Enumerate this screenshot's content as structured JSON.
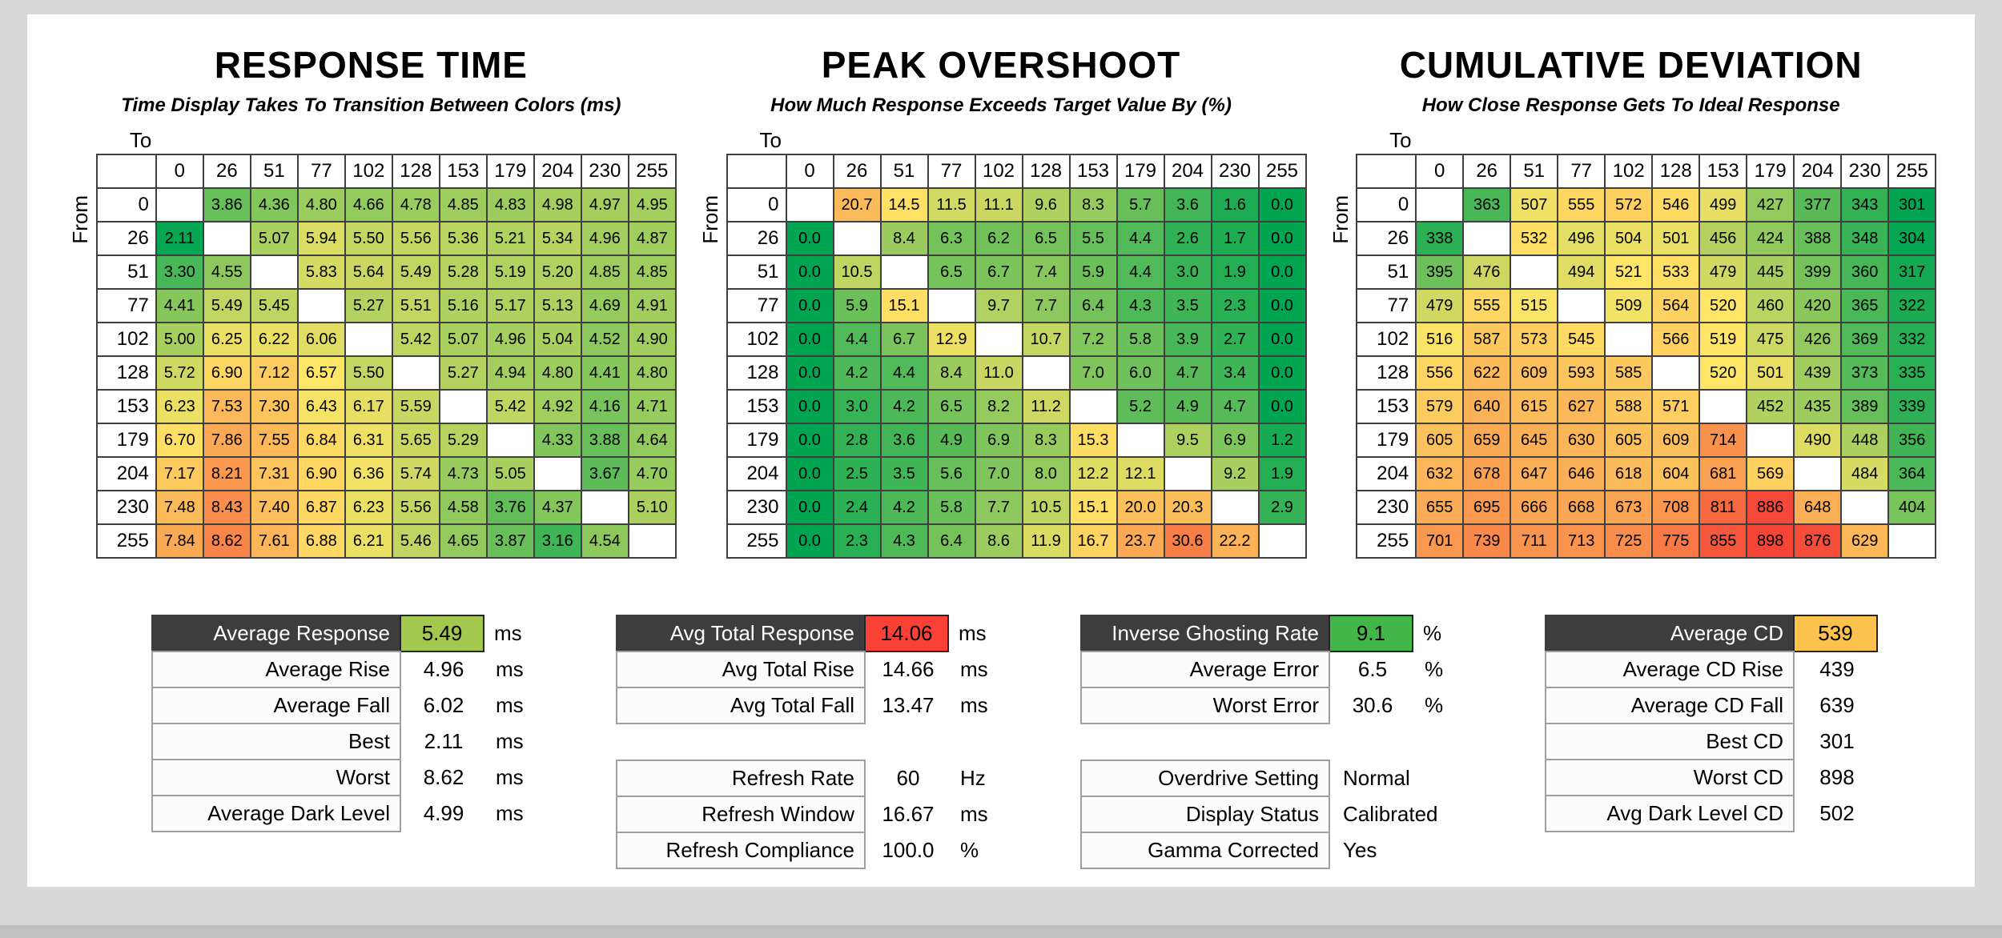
{
  "window": {
    "background": "#d8d8d8",
    "surface": "#ffffff",
    "bottom_bar": "#c0c0c0",
    "dark_header": "#3d3d3d"
  },
  "chart_data": [
    {
      "type": "heatmap",
      "name": "response-time",
      "title": "RESPONSE TIME",
      "subtitle": "Time Display Takes To Transition Between Colors (ms)",
      "xlabel": "To",
      "ylabel": "From",
      "levels": [
        0,
        26,
        51,
        77,
        102,
        128,
        153,
        179,
        204,
        230,
        255
      ],
      "decimals": 2,
      "color_scale": {
        "min": 2.0,
        "mid": 6.6,
        "max": 10.0,
        "low": "#00a551",
        "mid_color": "#ffe566",
        "high": "#f44336"
      },
      "rows": [
        [
          null,
          3.86,
          4.36,
          4.8,
          4.66,
          4.78,
          4.85,
          4.83,
          4.98,
          4.97,
          4.95
        ],
        [
          2.11,
          null,
          5.07,
          5.94,
          5.5,
          5.56,
          5.36,
          5.21,
          5.34,
          4.96,
          4.87
        ],
        [
          3.3,
          4.55,
          null,
          5.83,
          5.64,
          5.49,
          5.28,
          5.19,
          5.2,
          4.85,
          4.85
        ],
        [
          4.41,
          5.49,
          5.45,
          null,
          5.27,
          5.51,
          5.16,
          5.17,
          5.13,
          4.69,
          4.91
        ],
        [
          5.0,
          6.25,
          6.22,
          6.06,
          null,
          5.42,
          5.07,
          4.96,
          5.04,
          4.52,
          4.9
        ],
        [
          5.72,
          6.9,
          7.12,
          6.57,
          5.5,
          null,
          5.27,
          4.94,
          4.8,
          4.41,
          4.8
        ],
        [
          6.23,
          7.53,
          7.3,
          6.43,
          6.17,
          5.59,
          null,
          5.42,
          4.92,
          4.16,
          4.71
        ],
        [
          6.7,
          7.86,
          7.55,
          6.84,
          6.31,
          5.65,
          5.29,
          null,
          4.33,
          3.88,
          4.64
        ],
        [
          7.17,
          8.21,
          7.31,
          6.9,
          6.36,
          5.74,
          4.73,
          5.05,
          null,
          3.67,
          4.7
        ],
        [
          7.48,
          8.43,
          7.4,
          6.87,
          6.23,
          5.56,
          4.58,
          3.76,
          4.37,
          null,
          5.1
        ],
        [
          7.84,
          8.62,
          7.61,
          6.88,
          6.21,
          5.46,
          4.65,
          3.87,
          3.16,
          4.54,
          null
        ]
      ]
    },
    {
      "type": "heatmap",
      "name": "peak-overshoot",
      "title": "PEAK OVERSHOOT",
      "subtitle": "How Much Response Exceeds Target Value By (%)",
      "xlabel": "To",
      "ylabel": "From",
      "levels": [
        0,
        26,
        51,
        77,
        102,
        128,
        153,
        179,
        204,
        230,
        255
      ],
      "decimals": 1,
      "color_scale": {
        "min": 0,
        "mid": 14,
        "max": 40,
        "low": "#00a551",
        "mid_color": "#ffe566",
        "high": "#f44336"
      },
      "rows": [
        [
          null,
          20.7,
          14.5,
          11.5,
          11.1,
          9.6,
          8.3,
          5.7,
          3.6,
          1.6,
          0.0
        ],
        [
          0.0,
          null,
          8.4,
          6.3,
          6.2,
          6.5,
          5.5,
          4.4,
          2.6,
          1.7,
          0.0
        ],
        [
          0.0,
          10.5,
          null,
          6.5,
          6.7,
          7.4,
          5.9,
          4.4,
          3.0,
          1.9,
          0.0
        ],
        [
          0.0,
          5.9,
          15.1,
          null,
          9.7,
          7.7,
          6.4,
          4.3,
          3.5,
          2.3,
          0.0
        ],
        [
          0.0,
          4.4,
          6.7,
          12.9,
          null,
          10.7,
          7.2,
          5.8,
          3.9,
          2.7,
          0.0
        ],
        [
          0.0,
          4.2,
          4.4,
          8.4,
          11.0,
          null,
          7.0,
          6.0,
          4.7,
          3.4,
          0.0
        ],
        [
          0.0,
          3.0,
          4.2,
          6.5,
          8.2,
          11.2,
          null,
          5.2,
          4.9,
          4.7,
          0.0
        ],
        [
          0.0,
          2.8,
          3.6,
          4.9,
          6.9,
          8.3,
          15.3,
          null,
          9.5,
          6.9,
          1.2
        ],
        [
          0.0,
          2.5,
          3.5,
          5.6,
          7.0,
          8.0,
          12.2,
          12.1,
          null,
          9.2,
          1.9
        ],
        [
          0.0,
          2.4,
          4.2,
          5.8,
          7.7,
          10.5,
          15.1,
          20.0,
          20.3,
          null,
          2.9
        ],
        [
          0.0,
          2.3,
          4.3,
          6.4,
          8.6,
          11.9,
          16.7,
          23.7,
          30.6,
          22.2,
          null
        ]
      ]
    },
    {
      "type": "heatmap",
      "name": "cumulative-deviation",
      "title": "CUMULATIVE DEVIATION",
      "subtitle": "How Close Response Gets To Ideal Response",
      "xlabel": "To",
      "ylabel": "From",
      "levels": [
        0,
        26,
        51,
        77,
        102,
        128,
        153,
        179,
        204,
        230,
        255
      ],
      "decimals": 0,
      "color_scale": {
        "min": 300,
        "mid": 520,
        "max": 900,
        "low": "#00a551",
        "mid_color": "#ffe566",
        "high": "#f44336"
      },
      "rows": [
        [
          null,
          363,
          507,
          555,
          572,
          546,
          499,
          427,
          377,
          343,
          301
        ],
        [
          338,
          null,
          532,
          496,
          504,
          501,
          456,
          424,
          388,
          348,
          304
        ],
        [
          395,
          476,
          null,
          494,
          521,
          533,
          479,
          445,
          399,
          360,
          317
        ],
        [
          479,
          555,
          515,
          null,
          509,
          564,
          520,
          460,
          420,
          365,
          322
        ],
        [
          516,
          587,
          573,
          545,
          null,
          566,
          519,
          475,
          426,
          369,
          332
        ],
        [
          556,
          622,
          609,
          593,
          585,
          null,
          520,
          501,
          439,
          373,
          335
        ],
        [
          579,
          640,
          615,
          627,
          588,
          571,
          null,
          452,
          435,
          389,
          339
        ],
        [
          605,
          659,
          645,
          630,
          605,
          609,
          714,
          null,
          490,
          448,
          356
        ],
        [
          632,
          678,
          647,
          646,
          618,
          604,
          681,
          569,
          null,
          484,
          364
        ],
        [
          655,
          695,
          666,
          668,
          673,
          708,
          811,
          886,
          648,
          null,
          404
        ],
        [
          701,
          739,
          711,
          713,
          725,
          775,
          855,
          898,
          876,
          629,
          null
        ]
      ]
    }
  ],
  "summaries": [
    {
      "name": "response-summary",
      "rows": [
        {
          "type": "header",
          "label": "Average Response",
          "value": "5.49",
          "unit": "ms",
          "value_bg": "#a3c84f"
        },
        {
          "type": "row",
          "label": "Average Rise",
          "value": "4.96",
          "unit": "ms"
        },
        {
          "type": "row",
          "label": "Average Fall",
          "value": "6.02",
          "unit": "ms"
        },
        {
          "type": "row",
          "label": "Best",
          "value": "2.11",
          "unit": "ms"
        },
        {
          "type": "row",
          "label": "Worst",
          "value": "8.62",
          "unit": "ms"
        },
        {
          "type": "row",
          "label": "Average Dark Level",
          "value": "4.99",
          "unit": "ms"
        }
      ]
    },
    {
      "name": "total-response-summary",
      "rows": [
        {
          "type": "header",
          "label": "Avg Total Response",
          "value": "14.06",
          "unit": "ms",
          "value_bg": "#fb4136"
        },
        {
          "type": "row",
          "label": "Avg Total Rise",
          "value": "14.66",
          "unit": "ms"
        },
        {
          "type": "row",
          "label": "Avg Total Fall",
          "value": "13.47",
          "unit": "ms"
        },
        {
          "type": "spacer"
        },
        {
          "type": "row",
          "label": "Refresh Rate",
          "value": "60",
          "unit": "Hz"
        },
        {
          "type": "row",
          "label": "Refresh Window",
          "value": "16.67",
          "unit": "ms"
        },
        {
          "type": "row",
          "label": "Refresh Compliance",
          "value": "100.0",
          "unit": "%"
        }
      ]
    },
    {
      "name": "overshoot-summary",
      "rows": [
        {
          "type": "header",
          "label": "Inverse Ghosting Rate",
          "value": "9.1",
          "unit": "%",
          "value_bg": "#43b649"
        },
        {
          "type": "row",
          "label": "Average Error",
          "value": "6.5",
          "unit": "%"
        },
        {
          "type": "row",
          "label": "Worst Error",
          "value": "30.6",
          "unit": "%"
        },
        {
          "type": "spacer"
        },
        {
          "type": "row",
          "label": "Overdrive Setting",
          "value": "Normal",
          "text": true
        },
        {
          "type": "row",
          "label": "Display Status",
          "value": "Calibrated",
          "text": true
        },
        {
          "type": "row",
          "label": "Gamma Corrected",
          "value": "Yes",
          "text": true
        }
      ]
    },
    {
      "name": "cd-summary",
      "rows": [
        {
          "type": "header",
          "label": "Average CD",
          "value": "539",
          "value_bg": "#fcc24d"
        },
        {
          "type": "row",
          "label": "Average CD Rise",
          "value": "439"
        },
        {
          "type": "row",
          "label": "Average CD Fall",
          "value": "639"
        },
        {
          "type": "row",
          "label": "Best CD",
          "value": "301"
        },
        {
          "type": "row",
          "label": "Worst CD",
          "value": "898"
        },
        {
          "type": "row",
          "label": "Avg Dark Level CD",
          "value": "502"
        }
      ]
    }
  ]
}
